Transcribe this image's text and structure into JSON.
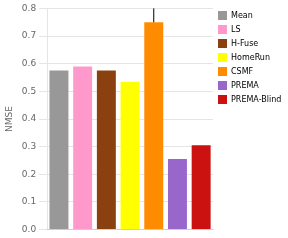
{
  "chart_data": {
    "type": "bar",
    "categories": [
      "Mean",
      "LS",
      "H-Fuse",
      "HomeRun",
      "CSMF",
      "PREMA",
      "PREMA-Blind"
    ],
    "values": [
      0.575,
      0.59,
      0.575,
      0.535,
      0.75,
      0.255,
      0.305
    ],
    "errors": [
      null,
      null,
      null,
      null,
      0.05,
      null,
      null
    ],
    "colors": [
      "#989898",
      "#FF99CC",
      "#8B4010",
      "#FFFF00",
      "#FF8C00",
      "#9966CC",
      "#CC1111"
    ],
    "ylabel": "NMSE",
    "ylim": [
      0,
      0.8
    ],
    "yticks": [
      {
        "value": 0,
        "label": "0.0"
      },
      0.1,
      0.2,
      0.3,
      0.4,
      0.5,
      0.6,
      0.7,
      0.8
    ],
    "grid": true,
    "legend": "upper right",
    "tick_labels": "y"
  }
}
